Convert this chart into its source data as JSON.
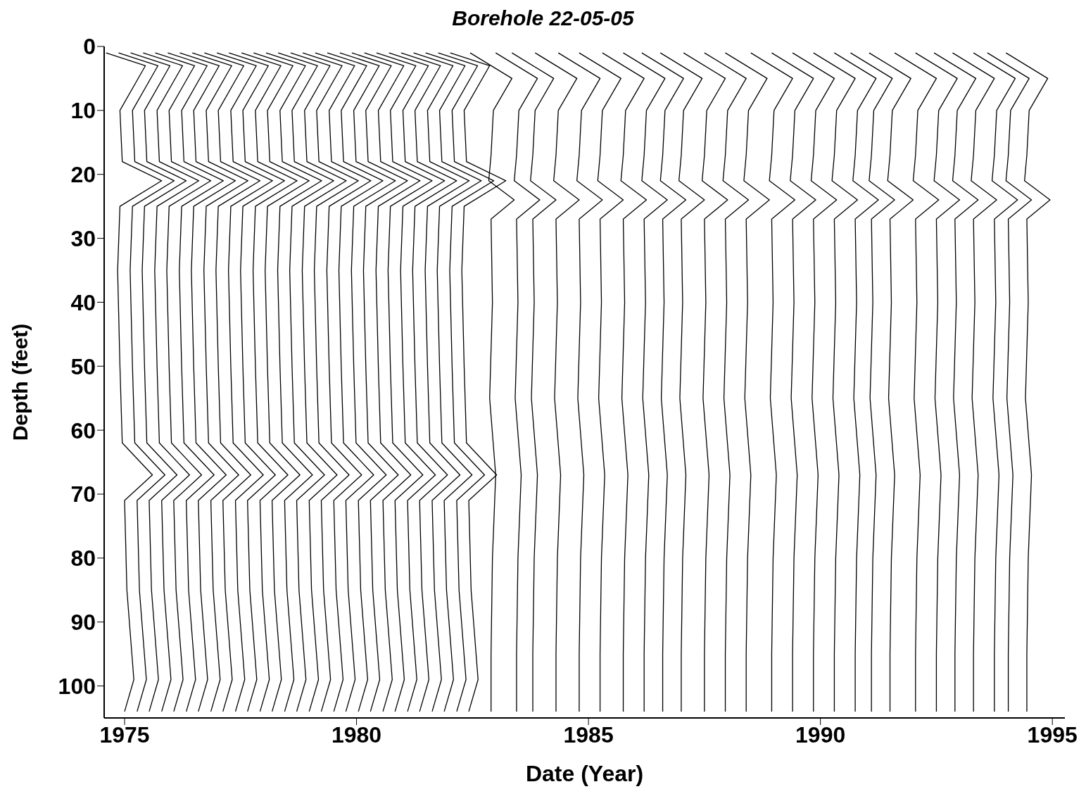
{
  "chart_data": {
    "type": "line",
    "title": "Borehole 22-05-05",
    "xlabel": "Date (Year)",
    "ylabel": "Depth (feet)",
    "xlim": [
      1974.56,
      1995.27
    ],
    "xticks": [
      1975,
      1980,
      1985,
      1990,
      1995
    ],
    "ylim": [
      105,
      0
    ],
    "yticks": [
      0,
      10,
      20,
      30,
      40,
      50,
      60,
      70,
      80,
      90,
      100
    ],
    "grid": false,
    "marker": "none",
    "line_style": "solid",
    "series": [
      {
        "color": "#000000",
        "x": [
          1974.6,
          1975.45,
          1974.9,
          1974.95,
          1975.8,
          1974.9,
          1974.85,
          1974.9,
          1974.95,
          1975.6,
          1975,
          1975.05,
          1975.2,
          1975
        ],
        "values": [
          1,
          3,
          10,
          18,
          21,
          25,
          35,
          50,
          62,
          67,
          71,
          85,
          99,
          104
        ]
      },
      {
        "color": "#000000",
        "x": [
          1974.87,
          1975.72,
          1975.17,
          1975.22,
          1976.07,
          1975.17,
          1975.12,
          1975.17,
          1975.22,
          1975.87,
          1975.27,
          1975.32,
          1975.47,
          1975.27
        ],
        "values": [
          1,
          3,
          10,
          18,
          21,
          25,
          35,
          50,
          62,
          67,
          71,
          85,
          99,
          104
        ]
      },
      {
        "color": "#000000",
        "x": [
          1975.13,
          1975.98,
          1975.43,
          1975.48,
          1976.33,
          1975.43,
          1975.38,
          1975.43,
          1975.48,
          1976.13,
          1975.53,
          1975.58,
          1975.73,
          1975.53
        ],
        "values": [
          1,
          3,
          10,
          18,
          21,
          25,
          35,
          50,
          62,
          67,
          71,
          85,
          99,
          104
        ]
      },
      {
        "color": "#000000",
        "x": [
          1975.4,
          1976.25,
          1975.7,
          1975.75,
          1976.6,
          1975.7,
          1975.65,
          1975.7,
          1975.75,
          1976.4,
          1975.8,
          1975.85,
          1976,
          1975.8
        ],
        "values": [
          1,
          3,
          10,
          18,
          21,
          25,
          35,
          50,
          62,
          67,
          71,
          85,
          99,
          104
        ]
      },
      {
        "color": "#000000",
        "x": [
          1975.66,
          1976.51,
          1975.96,
          1976.01,
          1976.86,
          1975.96,
          1975.91,
          1975.96,
          1976.01,
          1976.66,
          1976.06,
          1976.11,
          1976.26,
          1976.06
        ],
        "values": [
          1,
          3,
          10,
          18,
          21,
          25,
          35,
          50,
          62,
          67,
          71,
          85,
          99,
          104
        ]
      },
      {
        "color": "#000000",
        "x": [
          1975.93,
          1976.78,
          1976.23,
          1976.28,
          1977.13,
          1976.23,
          1976.18,
          1976.23,
          1976.28,
          1976.93,
          1976.33,
          1976.38,
          1976.53,
          1976.33
        ],
        "values": [
          1,
          3,
          10,
          18,
          21,
          25,
          35,
          50,
          62,
          67,
          71,
          85,
          99,
          104
        ]
      },
      {
        "color": "#000000",
        "x": [
          1976.19,
          1977.04,
          1976.49,
          1976.54,
          1977.39,
          1976.49,
          1976.44,
          1976.49,
          1976.54,
          1977.19,
          1976.59,
          1976.64,
          1976.79,
          1976.59
        ],
        "values": [
          1,
          3,
          10,
          18,
          21,
          25,
          35,
          50,
          62,
          67,
          71,
          85,
          99,
          104
        ]
      },
      {
        "color": "#000000",
        "x": [
          1976.46,
          1977.31,
          1976.76,
          1976.81,
          1977.66,
          1976.76,
          1976.71,
          1976.76,
          1976.81,
          1977.46,
          1976.86,
          1976.91,
          1977.06,
          1976.86
        ],
        "values": [
          1,
          3,
          10,
          18,
          21,
          25,
          35,
          50,
          62,
          67,
          71,
          85,
          99,
          104
        ]
      },
      {
        "color": "#000000",
        "x": [
          1976.72,
          1977.57,
          1977.02,
          1977.07,
          1977.92,
          1977.02,
          1976.97,
          1977.02,
          1977.07,
          1977.72,
          1977.12,
          1977.17,
          1977.32,
          1977.12
        ],
        "values": [
          1,
          3,
          10,
          18,
          21,
          25,
          35,
          50,
          62,
          67,
          71,
          85,
          99,
          104
        ]
      },
      {
        "color": "#000000",
        "x": [
          1976.99,
          1977.84,
          1977.29,
          1977.34,
          1978.19,
          1977.29,
          1977.24,
          1977.29,
          1977.34,
          1977.99,
          1977.39,
          1977.44,
          1977.59,
          1977.39
        ],
        "values": [
          1,
          3,
          10,
          18,
          21,
          25,
          35,
          50,
          62,
          67,
          71,
          85,
          99,
          104
        ]
      },
      {
        "color": "#000000",
        "x": [
          1977.25,
          1978.1,
          1977.55,
          1977.6,
          1978.45,
          1977.55,
          1977.5,
          1977.55,
          1977.6,
          1978.25,
          1977.65,
          1977.7,
          1977.85,
          1977.65
        ],
        "values": [
          1,
          3,
          10,
          18,
          21,
          25,
          35,
          50,
          62,
          67,
          71,
          85,
          99,
          104
        ]
      },
      {
        "color": "#000000",
        "x": [
          1977.52,
          1978.37,
          1977.82,
          1977.87,
          1978.72,
          1977.82,
          1977.77,
          1977.82,
          1977.87,
          1978.52,
          1977.92,
          1977.97,
          1978.12,
          1977.92
        ],
        "values": [
          1,
          3,
          10,
          18,
          21,
          25,
          35,
          50,
          62,
          67,
          71,
          85,
          99,
          104
        ]
      },
      {
        "color": "#000000",
        "x": [
          1977.78,
          1978.63,
          1978.08,
          1978.13,
          1978.98,
          1978.08,
          1978.03,
          1978.08,
          1978.13,
          1978.78,
          1978.18,
          1978.23,
          1978.38,
          1978.18
        ],
        "values": [
          1,
          3,
          10,
          18,
          21,
          25,
          35,
          50,
          62,
          67,
          71,
          85,
          99,
          104
        ]
      },
      {
        "color": "#000000",
        "x": [
          1978.05,
          1978.9,
          1978.35,
          1978.4,
          1979.25,
          1978.35,
          1978.3,
          1978.35,
          1978.4,
          1979.05,
          1978.45,
          1978.5,
          1978.65,
          1978.45
        ],
        "values": [
          1,
          3,
          10,
          18,
          21,
          25,
          35,
          50,
          62,
          67,
          71,
          85,
          99,
          104
        ]
      },
      {
        "color": "#000000",
        "x": [
          1978.31,
          1979.16,
          1978.61,
          1978.66,
          1979.51,
          1978.61,
          1978.56,
          1978.61,
          1978.66,
          1979.31,
          1978.71,
          1978.76,
          1978.91,
          1978.71
        ],
        "values": [
          1,
          3,
          10,
          18,
          21,
          25,
          35,
          50,
          62,
          67,
          71,
          85,
          99,
          104
        ]
      },
      {
        "color": "#000000",
        "x": [
          1978.58,
          1979.43,
          1978.88,
          1978.93,
          1979.78,
          1978.88,
          1978.83,
          1978.88,
          1978.93,
          1979.58,
          1978.98,
          1979.03,
          1979.18,
          1978.98
        ],
        "values": [
          1,
          3,
          10,
          18,
          21,
          25,
          35,
          50,
          62,
          67,
          71,
          85,
          99,
          104
        ]
      },
      {
        "color": "#000000",
        "x": [
          1978.84,
          1979.69,
          1979.14,
          1979.19,
          1980.04,
          1979.14,
          1979.09,
          1979.14,
          1979.19,
          1979.84,
          1979.24,
          1979.29,
          1979.44,
          1979.24
        ],
        "values": [
          1,
          3,
          10,
          18,
          21,
          25,
          35,
          50,
          62,
          67,
          71,
          85,
          99,
          104
        ]
      },
      {
        "color": "#000000",
        "x": [
          1979.11,
          1979.96,
          1979.41,
          1979.46,
          1980.31,
          1979.41,
          1979.36,
          1979.41,
          1979.46,
          1980.11,
          1979.51,
          1979.56,
          1979.71,
          1979.51
        ],
        "values": [
          1,
          3,
          10,
          18,
          21,
          25,
          35,
          50,
          62,
          67,
          71,
          85,
          99,
          104
        ]
      },
      {
        "color": "#000000",
        "x": [
          1979.37,
          1980.22,
          1979.67,
          1979.72,
          1980.57,
          1979.67,
          1979.62,
          1979.67,
          1979.72,
          1980.37,
          1979.77,
          1979.82,
          1979.97,
          1979.77
        ],
        "values": [
          1,
          3,
          10,
          18,
          21,
          25,
          35,
          50,
          62,
          67,
          71,
          85,
          99,
          104
        ]
      },
      {
        "color": "#000000",
        "x": [
          1979.64,
          1980.49,
          1979.94,
          1979.99,
          1980.84,
          1979.94,
          1979.89,
          1979.94,
          1979.99,
          1980.64,
          1980.04,
          1980.09,
          1980.24,
          1980.04
        ],
        "values": [
          1,
          3,
          10,
          18,
          21,
          25,
          35,
          50,
          62,
          67,
          71,
          85,
          99,
          104
        ]
      },
      {
        "color": "#000000",
        "x": [
          1979.9,
          1980.75,
          1980.2,
          1980.25,
          1981.1,
          1980.2,
          1980.15,
          1980.2,
          1980.25,
          1980.9,
          1980.3,
          1980.35,
          1980.5,
          1980.3
        ],
        "values": [
          1,
          3,
          10,
          18,
          21,
          25,
          35,
          50,
          62,
          67,
          71,
          85,
          99,
          104
        ]
      },
      {
        "color": "#000000",
        "x": [
          1980.17,
          1981.02,
          1980.47,
          1980.52,
          1981.37,
          1980.47,
          1980.42,
          1980.47,
          1980.52,
          1981.17,
          1980.57,
          1980.62,
          1980.77,
          1980.57
        ],
        "values": [
          1,
          3,
          10,
          18,
          21,
          25,
          35,
          50,
          62,
          67,
          71,
          85,
          99,
          104
        ]
      },
      {
        "color": "#000000",
        "x": [
          1980.43,
          1981.28,
          1980.73,
          1980.78,
          1981.63,
          1980.73,
          1980.68,
          1980.73,
          1980.78,
          1981.43,
          1980.83,
          1980.88,
          1981.03,
          1980.83
        ],
        "values": [
          1,
          3,
          10,
          18,
          21,
          25,
          35,
          50,
          62,
          67,
          71,
          85,
          99,
          104
        ]
      },
      {
        "color": "#000000",
        "x": [
          1980.7,
          1981.55,
          1981,
          1981.05,
          1981.9,
          1981,
          1980.95,
          1981,
          1981.05,
          1981.7,
          1981.1,
          1981.15,
          1981.3,
          1981.1
        ],
        "values": [
          1,
          3,
          10,
          18,
          21,
          25,
          35,
          50,
          62,
          67,
          71,
          85,
          99,
          104
        ]
      },
      {
        "color": "#000000",
        "x": [
          1980.96,
          1981.81,
          1981.26,
          1981.31,
          1982.16,
          1981.26,
          1981.21,
          1981.26,
          1981.31,
          1981.96,
          1981.36,
          1981.41,
          1981.56,
          1981.36
        ],
        "values": [
          1,
          3,
          10,
          18,
          21,
          25,
          35,
          50,
          62,
          67,
          71,
          85,
          99,
          104
        ]
      },
      {
        "color": "#000000",
        "x": [
          1981.23,
          1982.08,
          1981.53,
          1981.58,
          1982.43,
          1981.53,
          1981.48,
          1981.53,
          1981.58,
          1982.23,
          1981.63,
          1981.68,
          1981.83,
          1981.63
        ],
        "values": [
          1,
          3,
          10,
          18,
          21,
          25,
          35,
          50,
          62,
          67,
          71,
          85,
          99,
          104
        ]
      },
      {
        "color": "#000000",
        "x": [
          1981.49,
          1982.34,
          1981.79,
          1981.84,
          1982.69,
          1981.79,
          1981.74,
          1981.79,
          1981.84,
          1982.49,
          1981.89,
          1981.94,
          1982.09,
          1981.89
        ],
        "values": [
          1,
          3,
          10,
          18,
          21,
          25,
          35,
          50,
          62,
          67,
          71,
          85,
          99,
          104
        ]
      },
      {
        "color": "#000000",
        "x": [
          1981.76,
          1982.61,
          1982.06,
          1982.11,
          1982.96,
          1982.06,
          1982.01,
          1982.06,
          1982.11,
          1982.76,
          1982.16,
          1982.21,
          1982.36,
          1982.16
        ],
        "values": [
          1,
          3,
          10,
          18,
          21,
          25,
          35,
          50,
          62,
          67,
          71,
          85,
          99,
          104
        ]
      },
      {
        "color": "#000000",
        "x": [
          1982.02,
          1982.87,
          1982.32,
          1982.37,
          1983.22,
          1982.32,
          1982.27,
          1982.32,
          1982.37,
          1983.02,
          1982.42,
          1982.47,
          1982.62,
          1982.42
        ],
        "values": [
          1,
          3,
          10,
          18,
          21,
          25,
          35,
          50,
          62,
          67,
          71,
          85,
          99,
          104
        ]
      },
      {
        "color": "#000000",
        "x": [
          1982.45,
          1983.35,
          1982.95,
          1982.9,
          1982.85,
          1983.4,
          1982.9,
          1982.93,
          1982.87,
          1983,
          1982.93,
          1982.9,
          1982.9
        ],
        "values": [
          1,
          5,
          10,
          17,
          21,
          24,
          27,
          40,
          55,
          67,
          80,
          95,
          104
        ]
      },
      {
        "color": "#000000",
        "x": [
          1983,
          1983.9,
          1983.5,
          1983.45,
          1983.4,
          1983.95,
          1983.45,
          1983.48,
          1983.42,
          1983.55,
          1983.48,
          1983.45,
          1983.45
        ],
        "values": [
          1,
          5,
          10,
          17,
          21,
          24,
          27,
          40,
          55,
          67,
          80,
          95,
          104
        ]
      },
      {
        "color": "#000000",
        "x": [
          1983.35,
          1984.25,
          1983.85,
          1983.8,
          1983.75,
          1984.3,
          1983.8,
          1983.83,
          1983.77,
          1983.9,
          1983.83,
          1983.8,
          1983.8
        ],
        "values": [
          1,
          5,
          10,
          17,
          21,
          24,
          27,
          40,
          55,
          67,
          80,
          95,
          104
        ]
      },
      {
        "color": "#000000",
        "x": [
          1983.85,
          1984.75,
          1984.35,
          1984.3,
          1984.25,
          1984.8,
          1984.3,
          1984.33,
          1984.27,
          1984.4,
          1984.33,
          1984.3,
          1984.3
        ],
        "values": [
          1,
          5,
          10,
          17,
          21,
          24,
          27,
          40,
          55,
          67,
          80,
          95,
          104
        ]
      },
      {
        "color": "#000000",
        "x": [
          1984.35,
          1985.25,
          1984.85,
          1984.8,
          1984.75,
          1985.3,
          1984.8,
          1984.83,
          1984.77,
          1984.9,
          1984.83,
          1984.8,
          1984.8
        ],
        "values": [
          1,
          5,
          10,
          17,
          21,
          24,
          27,
          40,
          55,
          67,
          80,
          95,
          104
        ]
      },
      {
        "color": "#000000",
        "x": [
          1984.8,
          1985.7,
          1985.3,
          1985.25,
          1985.2,
          1985.75,
          1985.25,
          1985.28,
          1985.22,
          1985.35,
          1985.28,
          1985.25,
          1985.25
        ],
        "values": [
          1,
          5,
          10,
          17,
          21,
          24,
          27,
          40,
          55,
          67,
          80,
          95,
          104
        ]
      },
      {
        "color": "#000000",
        "x": [
          1985.3,
          1986.2,
          1985.8,
          1985.75,
          1985.7,
          1986.25,
          1985.75,
          1985.78,
          1985.72,
          1985.85,
          1985.78,
          1985.75,
          1985.75
        ],
        "values": [
          1,
          5,
          10,
          17,
          21,
          24,
          27,
          40,
          55,
          67,
          80,
          95,
          104
        ]
      },
      {
        "color": "#000000",
        "x": [
          1985.75,
          1986.65,
          1986.25,
          1986.2,
          1986.15,
          1986.7,
          1986.2,
          1986.23,
          1986.17,
          1986.3,
          1986.23,
          1986.2,
          1986.2
        ],
        "values": [
          1,
          5,
          10,
          17,
          21,
          24,
          27,
          40,
          55,
          67,
          80,
          95,
          104
        ]
      },
      {
        "color": "#000000",
        "x": [
          1986.15,
          1987.05,
          1986.65,
          1986.6,
          1986.55,
          1987.1,
          1986.6,
          1986.63,
          1986.57,
          1986.7,
          1986.63,
          1986.6,
          1986.6
        ],
        "values": [
          1,
          5,
          10,
          17,
          21,
          24,
          27,
          40,
          55,
          67,
          80,
          95,
          104
        ]
      },
      {
        "color": "#000000",
        "x": [
          1986.55,
          1987.45,
          1987.05,
          1987,
          1986.95,
          1987.5,
          1987,
          1987.03,
          1986.97,
          1987.1,
          1987.03,
          1987,
          1987
        ],
        "values": [
          1,
          5,
          10,
          17,
          21,
          24,
          27,
          40,
          55,
          67,
          80,
          95,
          104
        ]
      },
      {
        "color": "#000000",
        "x": [
          1987.05,
          1987.95,
          1987.55,
          1987.5,
          1987.45,
          1988,
          1987.5,
          1987.53,
          1987.47,
          1987.6,
          1987.53,
          1987.5,
          1987.5
        ],
        "values": [
          1,
          5,
          10,
          17,
          21,
          24,
          27,
          40,
          55,
          67,
          80,
          95,
          104
        ]
      },
      {
        "color": "#000000",
        "x": [
          1987.5,
          1988.4,
          1988,
          1987.95,
          1987.9,
          1988.45,
          1987.95,
          1987.98,
          1987.92,
          1988.05,
          1987.98,
          1987.95,
          1987.95
        ],
        "values": [
          1,
          5,
          10,
          17,
          21,
          24,
          27,
          40,
          55,
          67,
          80,
          95,
          104
        ]
      },
      {
        "color": "#000000",
        "x": [
          1987.95,
          1988.85,
          1988.45,
          1988.4,
          1988.35,
          1988.9,
          1988.4,
          1988.43,
          1988.37,
          1988.5,
          1988.43,
          1988.4,
          1988.4
        ],
        "values": [
          1,
          5,
          10,
          17,
          21,
          24,
          27,
          40,
          55,
          67,
          80,
          95,
          104
        ]
      },
      {
        "color": "#000000",
        "x": [
          1988.5,
          1989.4,
          1989,
          1988.95,
          1988.9,
          1989.45,
          1988.95,
          1988.98,
          1988.92,
          1989.05,
          1988.98,
          1988.95,
          1988.95
        ],
        "values": [
          1,
          5,
          10,
          17,
          21,
          24,
          27,
          40,
          55,
          67,
          80,
          95,
          104
        ]
      },
      {
        "color": "#000000",
        "x": [
          1988.95,
          1989.85,
          1989.45,
          1989.4,
          1989.35,
          1989.9,
          1989.4,
          1989.43,
          1989.37,
          1989.5,
          1989.43,
          1989.4,
          1989.4
        ],
        "values": [
          1,
          5,
          10,
          17,
          21,
          24,
          27,
          40,
          55,
          67,
          80,
          95,
          104
        ]
      },
      {
        "color": "#000000",
        "x": [
          1989.4,
          1990.3,
          1989.9,
          1989.85,
          1989.8,
          1990.35,
          1989.85,
          1989.88,
          1989.82,
          1989.95,
          1989.88,
          1989.85,
          1989.85
        ],
        "values": [
          1,
          5,
          10,
          17,
          21,
          24,
          27,
          40,
          55,
          67,
          80,
          95,
          104
        ]
      },
      {
        "color": "#000000",
        "x": [
          1989.85,
          1990.75,
          1990.35,
          1990.3,
          1990.25,
          1990.8,
          1990.3,
          1990.33,
          1990.27,
          1990.4,
          1990.33,
          1990.3,
          1990.3
        ],
        "values": [
          1,
          5,
          10,
          17,
          21,
          24,
          27,
          40,
          55,
          67,
          80,
          95,
          104
        ]
      },
      {
        "color": "#000000",
        "x": [
          1990.3,
          1991.2,
          1990.8,
          1990.75,
          1990.7,
          1991.25,
          1990.75,
          1990.78,
          1990.72,
          1990.85,
          1990.78,
          1990.75,
          1990.75
        ],
        "values": [
          1,
          5,
          10,
          17,
          21,
          24,
          27,
          40,
          55,
          67,
          80,
          95,
          104
        ]
      },
      {
        "color": "#000000",
        "x": [
          1990.65,
          1991.55,
          1991.15,
          1991.1,
          1991.05,
          1991.6,
          1991.1,
          1991.13,
          1991.07,
          1991.2,
          1991.13,
          1991.1,
          1991.1
        ],
        "values": [
          1,
          5,
          10,
          17,
          21,
          24,
          27,
          40,
          55,
          67,
          80,
          95,
          104
        ]
      },
      {
        "color": "#000000",
        "x": [
          1991.05,
          1991.95,
          1991.55,
          1991.5,
          1991.45,
          1992,
          1991.5,
          1991.53,
          1991.47,
          1991.6,
          1991.53,
          1991.5,
          1991.5
        ],
        "values": [
          1,
          5,
          10,
          17,
          21,
          24,
          27,
          40,
          55,
          67,
          80,
          95,
          104
        ]
      },
      {
        "color": "#000000",
        "x": [
          1991.6,
          1992.5,
          1992.1,
          1992.05,
          1992,
          1992.55,
          1992.05,
          1992.08,
          1992.02,
          1992.15,
          1992.08,
          1992.05,
          1992.05
        ],
        "values": [
          1,
          5,
          10,
          17,
          21,
          24,
          27,
          40,
          55,
          67,
          80,
          95,
          104
        ]
      },
      {
        "color": "#000000",
        "x": [
          1992.05,
          1992.95,
          1992.55,
          1992.5,
          1992.45,
          1993,
          1992.5,
          1992.53,
          1992.47,
          1992.6,
          1992.53,
          1992.5,
          1992.5
        ],
        "values": [
          1,
          5,
          10,
          17,
          21,
          24,
          27,
          40,
          55,
          67,
          80,
          95,
          104
        ]
      },
      {
        "color": "#000000",
        "x": [
          1992.45,
          1993.35,
          1992.95,
          1992.9,
          1992.85,
          1993.4,
          1992.9,
          1992.93,
          1992.87,
          1993,
          1992.93,
          1992.9,
          1992.9
        ],
        "values": [
          1,
          5,
          10,
          17,
          21,
          24,
          27,
          40,
          55,
          67,
          80,
          95,
          104
        ]
      },
      {
        "color": "#000000",
        "x": [
          1992.85,
          1993.75,
          1993.35,
          1993.3,
          1993.25,
          1993.8,
          1993.3,
          1993.33,
          1993.27,
          1993.4,
          1993.33,
          1993.3,
          1993.3
        ],
        "values": [
          1,
          5,
          10,
          17,
          21,
          24,
          27,
          40,
          55,
          67,
          80,
          95,
          104
        ]
      },
      {
        "color": "#000000",
        "x": [
          1993.3,
          1994.2,
          1993.8,
          1993.75,
          1993.7,
          1994.25,
          1993.75,
          1993.78,
          1993.72,
          1993.85,
          1993.78,
          1993.75,
          1993.75
        ],
        "values": [
          1,
          5,
          10,
          17,
          21,
          24,
          27,
          40,
          55,
          67,
          80,
          95,
          104
        ]
      },
      {
        "color": "#000000",
        "x": [
          1993.6,
          1994.5,
          1994.1,
          1994.05,
          1994,
          1994.55,
          1994.05,
          1994.08,
          1994.02,
          1994.15,
          1994.08,
          1994.05,
          1994.05
        ],
        "values": [
          1,
          5,
          10,
          17,
          21,
          24,
          27,
          40,
          55,
          67,
          80,
          95,
          104
        ]
      },
      {
        "color": "#000000",
        "x": [
          1994,
          1994.9,
          1994.5,
          1994.45,
          1994.4,
          1994.95,
          1994.45,
          1994.48,
          1994.42,
          1994.55,
          1994.48,
          1994.45,
          1994.45
        ],
        "values": [
          1,
          5,
          10,
          17,
          21,
          24,
          27,
          40,
          55,
          67,
          80,
          95,
          104
        ]
      }
    ]
  }
}
